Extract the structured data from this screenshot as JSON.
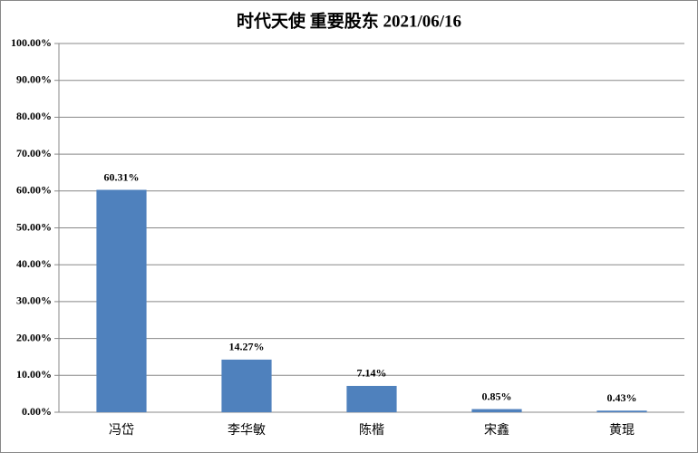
{
  "chart_data": {
    "type": "bar",
    "title": "时代天使 重要股东 2021/06/16",
    "categories": [
      "冯岱",
      "李华敏",
      "陈楷",
      "宋鑫",
      "黄琨"
    ],
    "values": [
      60.31,
      14.27,
      7.14,
      0.85,
      0.43
    ],
    "value_labels": [
      "60.31%",
      "14.27%",
      "7.14%",
      "0.85%",
      "0.43%"
    ],
    "color": "#4f81bd",
    "ylim": [
      0,
      100
    ],
    "yticks": [
      {
        "value": 0,
        "label": "0.00%"
      },
      {
        "value": 10,
        "label": "10.00%"
      },
      {
        "value": 20,
        "label": "20.00%"
      },
      {
        "value": 30,
        "label": "30.00%"
      },
      {
        "value": 40,
        "label": "40.00%"
      },
      {
        "value": 50,
        "label": "50.00%"
      },
      {
        "value": 60,
        "label": "60.00%"
      },
      {
        "value": 70,
        "label": "70.00%"
      },
      {
        "value": 80,
        "label": "80.00%"
      },
      {
        "value": 90,
        "label": "90.00%"
      },
      {
        "value": 100,
        "label": "100.00%"
      }
    ],
    "grid": true
  }
}
